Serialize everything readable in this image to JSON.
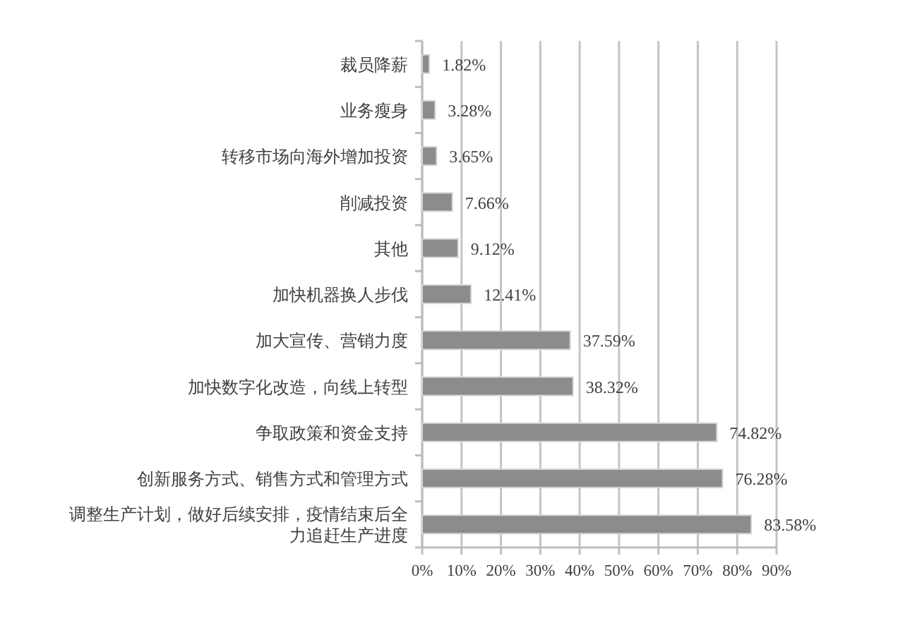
{
  "chart_data": {
    "type": "bar",
    "orientation": "horizontal",
    "categories": [
      "裁员降薪",
      "业务瘦身",
      "转移市场向海外增加投资",
      "削减投资",
      "其他",
      "加快机器换人步伐",
      "加大宣传、营销力度",
      "加快数字化改造，向线上转型",
      "争取政策和资金支持",
      "创新服务方式、销售方式和管理方式",
      "调整生产计划，做好后续安排，疫情结束后全力追赶生产进度"
    ],
    "values": [
      1.82,
      3.28,
      3.65,
      7.66,
      9.12,
      12.41,
      37.59,
      38.32,
      74.82,
      76.28,
      83.58
    ],
    "value_labels": [
      "1.82%",
      "3.28%",
      "3.65%",
      "7.66%",
      "9.12%",
      "12.41%",
      "37.59%",
      "38.32%",
      "74.82%",
      "76.28%",
      "83.58%"
    ],
    "color": "#8c8c8c",
    "xlim": [
      0,
      90
    ],
    "xticks": [
      {
        "value": 0,
        "label": "0%"
      },
      {
        "value": 10,
        "label": "10%"
      },
      {
        "value": 20,
        "label": "20%"
      },
      {
        "value": 30,
        "label": "30%"
      },
      {
        "value": 40,
        "label": "40%"
      },
      {
        "value": 50,
        "label": "50%"
      },
      {
        "value": 60,
        "label": "60%"
      },
      {
        "value": 70,
        "label": "70%"
      },
      {
        "value": 80,
        "label": "80%"
      },
      {
        "value": 90,
        "label": "90%"
      }
    ],
    "grid": "x"
  }
}
